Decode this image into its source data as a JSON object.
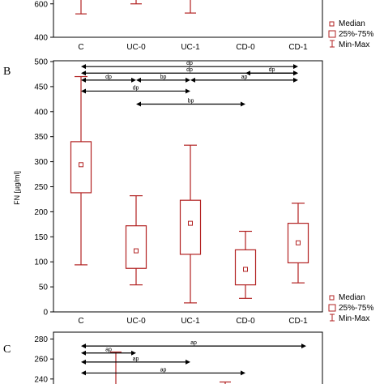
{
  "colors": {
    "box": "#b22222",
    "frame": "#000000",
    "arrow": "#000000"
  },
  "panels": {
    "a": {
      "label": "",
      "legend": [
        "Median",
        "25%-75%",
        "Min-Max"
      ]
    },
    "b": {
      "label": "B",
      "legend": [
        "Median",
        "25%-75%",
        "Min-Max"
      ]
    },
    "c": {
      "label": "C"
    }
  },
  "chart_data": [
    {
      "type": "box",
      "panel": "top (partial)",
      "categories": [
        "C",
        "UC-0",
        "UC-1",
        "CD-0",
        "CD-1"
      ],
      "yticks": [
        400,
        600
      ],
      "ylim": [
        400,
        720
      ],
      "series": [
        {
          "category": "C",
          "min": 540
        },
        {
          "category": "UC-0",
          "min": 600
        },
        {
          "category": "UC-1",
          "min": 545
        },
        {
          "category": "CD-0"
        },
        {
          "category": "CD-1"
        }
      ]
    },
    {
      "type": "box",
      "panel": "B",
      "ylabel": "FN [µg/ml]",
      "categories": [
        "C",
        "UC-0",
        "UC-1",
        "CD-0",
        "CD-1"
      ],
      "yticks": [
        0,
        50,
        100,
        150,
        200,
        250,
        300,
        350,
        400,
        450,
        500
      ],
      "ylim": [
        0,
        500
      ],
      "series": [
        {
          "category": "C",
          "min": 94,
          "q1": 238,
          "median": 294,
          "q3": 340,
          "max": 470
        },
        {
          "category": "UC-0",
          "min": 54,
          "q1": 87,
          "median": 122,
          "q3": 172,
          "max": 232
        },
        {
          "category": "UC-1",
          "min": 18,
          "q1": 115,
          "median": 177,
          "q3": 223,
          "max": 333
        },
        {
          "category": "CD-0",
          "min": 27,
          "q1": 54,
          "median": 85,
          "q3": 124,
          "max": 161
        },
        {
          "category": "CD-1",
          "min": 58,
          "q1": 98,
          "median": 138,
          "q3": 177,
          "max": 217
        }
      ],
      "significance": [
        {
          "from": "C",
          "to": "CD-1",
          "label": "dp",
          "y": 490
        },
        {
          "from": "C",
          "to": "CD-1",
          "label": "dp",
          "y": 477
        },
        {
          "from": "CD-0",
          "to": "CD-1",
          "label": "dp",
          "y": 477
        },
        {
          "from": "C",
          "to": "UC-0",
          "label": "dp",
          "y": 463
        },
        {
          "from": "UC-0",
          "to": "UC-1",
          "label": "bp",
          "y": 463
        },
        {
          "from": "UC-1",
          "to": "CD-1",
          "label": "ap",
          "y": 463
        },
        {
          "from": "C",
          "to": "UC-1",
          "label": "dp",
          "y": 441
        },
        {
          "from": "UC-0",
          "to": "CD-0",
          "label": "bp",
          "y": 415
        }
      ]
    },
    {
      "type": "box",
      "panel": "C (partial)",
      "categories": [
        "C",
        "UC-0",
        "UC-1",
        "CD-0",
        "CD-1"
      ],
      "yticks": [
        240,
        260,
        280
      ],
      "ylim": [
        235,
        282
      ],
      "series": [
        {
          "category": "C"
        },
        {
          "category": "UC-0",
          "max": 267
        },
        {
          "category": "UC-1"
        },
        {
          "category": "CD-0",
          "max": 237
        },
        {
          "category": "CD-1"
        }
      ],
      "significance": [
        {
          "from": "C",
          "to": "CD-1",
          "label": "ap",
          "y": 273
        },
        {
          "from": "C",
          "to": "UC-0",
          "label": "ap",
          "y": 266
        },
        {
          "from": "C",
          "to": "UC-1",
          "label": "ap",
          "y": 257
        },
        {
          "from": "C",
          "to": "CD-0",
          "label": "ap",
          "y": 246
        }
      ]
    }
  ]
}
